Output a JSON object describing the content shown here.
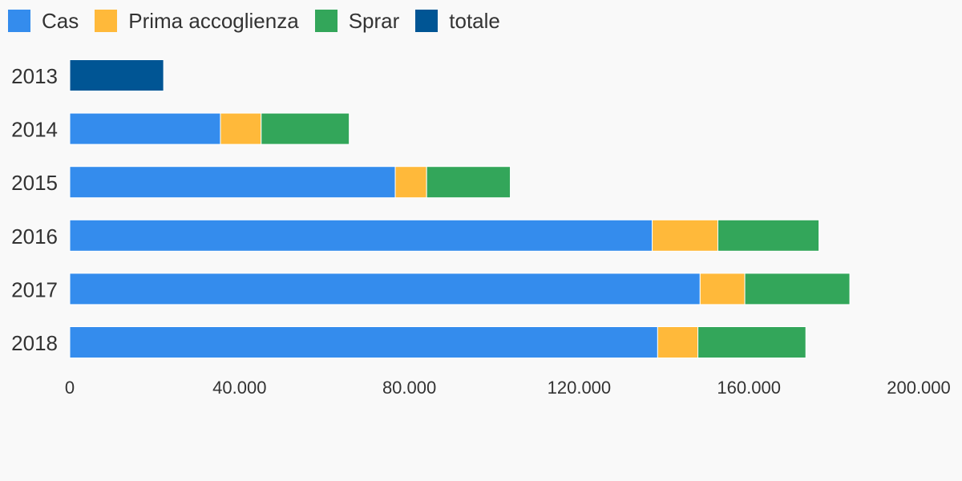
{
  "chart_data": {
    "type": "bar",
    "orientation": "horizontal",
    "stacked": true,
    "categories": [
      "2013",
      "2014",
      "2015",
      "2016",
      "2017",
      "2018"
    ],
    "series": [
      {
        "name": "Cas",
        "color": "#348ced",
        "values": [
          0,
          35499,
          76683,
          137218,
          148502,
          138503
        ]
      },
      {
        "name": "Prima accoglienza",
        "color": "#ffb93a",
        "values": [
          0,
          9592,
          7390,
          15467,
          10526,
          9479
        ]
      },
      {
        "name": "Sprar",
        "color": "#33a65a",
        "values": [
          0,
          20751,
          19715,
          23822,
          24741,
          25430
        ]
      },
      {
        "name": "totale",
        "color": "#005594",
        "values": [
          22118,
          0,
          0,
          0,
          0,
          0
        ]
      }
    ],
    "xlim": [
      0,
      200000
    ],
    "xticks": [
      0,
      40000,
      80000,
      120000,
      160000,
      200000
    ],
    "xtick_labels": [
      "0",
      "40.000",
      "80.000",
      "120.000",
      "160.000",
      "200.000"
    ],
    "legend_position": "top-left",
    "grid": false
  }
}
